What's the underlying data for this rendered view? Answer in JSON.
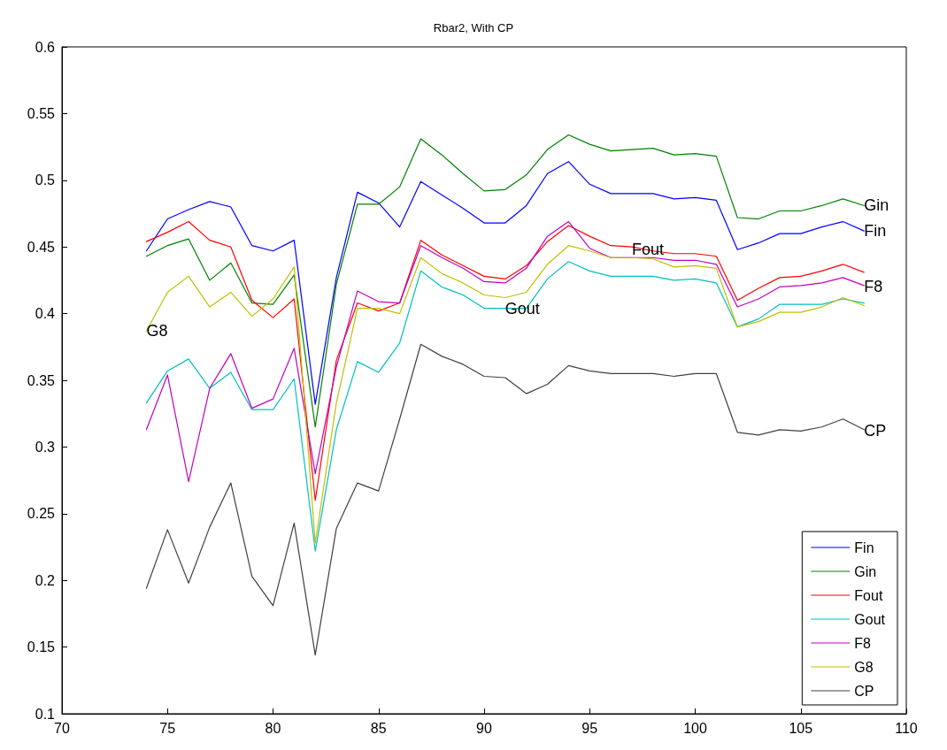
{
  "chart_data": {
    "type": "line",
    "title": "Rbar2, With CP",
    "x": [
      74,
      75,
      76,
      77,
      78,
      79,
      80,
      81,
      82,
      83,
      84,
      85,
      86,
      87,
      88,
      89,
      90,
      91,
      92,
      93,
      94,
      95,
      96,
      97,
      98,
      99,
      100,
      101,
      102,
      103,
      104,
      105,
      106,
      107,
      108
    ],
    "series": [
      {
        "name": "Fin",
        "color": "#0000ff",
        "values": [
          0.447,
          0.471,
          0.478,
          0.484,
          0.48,
          0.451,
          0.447,
          0.455,
          0.332,
          0.427,
          0.491,
          0.483,
          0.465,
          0.499,
          0.489,
          0.479,
          0.468,
          0.468,
          0.481,
          0.505,
          0.514,
          0.497,
          0.49,
          0.49,
          0.49,
          0.486,
          0.487,
          0.485,
          0.448,
          0.453,
          0.46,
          0.46,
          0.465,
          0.469,
          0.462
        ]
      },
      {
        "name": "Gin",
        "color": "#008000",
        "values": [
          0.443,
          0.451,
          0.456,
          0.425,
          0.438,
          0.408,
          0.407,
          0.429,
          0.315,
          0.422,
          0.482,
          0.482,
          0.495,
          0.531,
          0.519,
          0.505,
          0.492,
          0.493,
          0.504,
          0.523,
          0.534,
          0.527,
          0.522,
          0.523,
          0.524,
          0.519,
          0.52,
          0.518,
          0.472,
          0.471,
          0.477,
          0.477,
          0.481,
          0.486,
          0.481
        ]
      },
      {
        "name": "Fout",
        "color": "#ff0000",
        "values": [
          0.454,
          0.461,
          0.469,
          0.455,
          0.45,
          0.41,
          0.397,
          0.411,
          0.26,
          0.365,
          0.408,
          0.402,
          0.408,
          0.455,
          0.444,
          0.436,
          0.428,
          0.426,
          0.436,
          0.454,
          0.466,
          0.458,
          0.451,
          0.45,
          0.447,
          0.445,
          0.445,
          0.443,
          0.41,
          0.419,
          0.427,
          0.428,
          0.432,
          0.437,
          0.431
        ]
      },
      {
        "name": "Gout",
        "color": "#00bfbf",
        "values": [
          0.333,
          0.357,
          0.366,
          0.344,
          0.356,
          0.328,
          0.328,
          0.351,
          0.222,
          0.313,
          0.364,
          0.356,
          0.378,
          0.432,
          0.42,
          0.414,
          0.404,
          0.404,
          0.404,
          0.426,
          0.439,
          0.432,
          0.428,
          0.428,
          0.428,
          0.425,
          0.426,
          0.423,
          0.39,
          0.396,
          0.407,
          0.407,
          0.407,
          0.411,
          0.408
        ]
      },
      {
        "name": "F8",
        "color": "#bf00bf",
        "values": [
          0.313,
          0.354,
          0.274,
          0.344,
          0.37,
          0.329,
          0.336,
          0.374,
          0.28,
          0.36,
          0.417,
          0.409,
          0.408,
          0.451,
          0.442,
          0.434,
          0.424,
          0.423,
          0.434,
          0.458,
          0.469,
          0.449,
          0.442,
          0.442,
          0.442,
          0.44,
          0.44,
          0.437,
          0.405,
          0.411,
          0.42,
          0.421,
          0.423,
          0.427,
          0.421
        ]
      },
      {
        "name": "G8",
        "color": "#bfbf00",
        "values": [
          0.387,
          0.416,
          0.428,
          0.405,
          0.416,
          0.398,
          0.411,
          0.435,
          0.228,
          0.333,
          0.404,
          0.404,
          0.4,
          0.442,
          0.43,
          0.423,
          0.414,
          0.412,
          0.416,
          0.437,
          0.451,
          0.447,
          0.442,
          0.442,
          0.441,
          0.435,
          0.436,
          0.434,
          0.39,
          0.394,
          0.401,
          0.401,
          0.405,
          0.412,
          0.406
        ]
      },
      {
        "name": "CP",
        "color": "#404040",
        "values": [
          0.194,
          0.238,
          0.198,
          0.24,
          0.273,
          0.203,
          0.181,
          0.243,
          0.144,
          0.239,
          0.273,
          0.267,
          0.321,
          0.377,
          0.368,
          0.362,
          0.353,
          0.352,
          0.34,
          0.347,
          0.361,
          0.357,
          0.355,
          0.355,
          0.355,
          0.353,
          0.355,
          0.355,
          0.311,
          0.309,
          0.313,
          0.312,
          0.315,
          0.321,
          0.313
        ]
      }
    ],
    "annotations": [
      {
        "text": "Gin",
        "x": 108,
        "y": 0.481
      },
      {
        "text": "Fin",
        "x": 108,
        "y": 0.462
      },
      {
        "text": "Fout",
        "x": 97,
        "y": 0.448
      },
      {
        "text": "F8",
        "x": 108,
        "y": 0.42
      },
      {
        "text": "Gout",
        "x": 91,
        "y": 0.404
      },
      {
        "text": "G8",
        "x": 74,
        "y": 0.387
      },
      {
        "text": "CP",
        "x": 108,
        "y": 0.312
      }
    ],
    "xlim": [
      70,
      110
    ],
    "xticks": [
      70,
      75,
      80,
      85,
      90,
      95,
      100,
      105,
      110
    ],
    "ylim": [
      0.1,
      0.6
    ],
    "yticks": [
      0.1,
      0.15,
      0.2,
      0.25,
      0.3,
      0.35,
      0.4,
      0.45,
      0.5,
      0.55,
      0.6
    ],
    "grid": false,
    "legend": "bottom right",
    "marker": "none",
    "line_style": "solid"
  }
}
